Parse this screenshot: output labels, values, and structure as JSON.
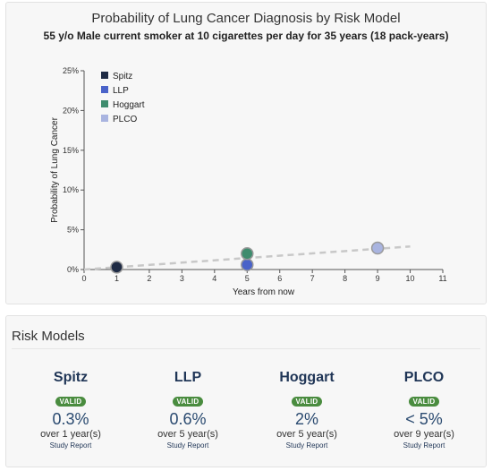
{
  "chart_panel": {
    "title": "Probability of Lung Cancer Diagnosis by Risk Model",
    "subtitle": "55 y/o Male current smoker at 10 cigarettes per day for 35 years (18 pack-years)"
  },
  "chart_data": {
    "type": "scatter",
    "title": "Probability of Lung Cancer Diagnosis by Risk Model",
    "xlabel": "Years from now",
    "ylabel": "Probability of Lung Cancer",
    "xlim": [
      0,
      11
    ],
    "ylim": [
      0,
      25
    ],
    "x_ticks": [
      "0",
      "1",
      "2",
      "3",
      "4",
      "5",
      "6",
      "7",
      "8",
      "9",
      "10",
      "11"
    ],
    "y_ticks": [
      "0%",
      "5%",
      "10%",
      "15%",
      "20%",
      "25%"
    ],
    "legend_position": "top-left",
    "series": [
      {
        "name": "Spitz",
        "color": "#1e2a44",
        "points": [
          {
            "x": 1,
            "y": 0.3
          }
        ]
      },
      {
        "name": "LLP",
        "color": "#4a63c9",
        "points": [
          {
            "x": 5,
            "y": 0.6
          }
        ]
      },
      {
        "name": "Hoggart",
        "color": "#3f8c6e",
        "points": [
          {
            "x": 5,
            "y": 2.0
          }
        ]
      },
      {
        "name": "PLCO",
        "color": "#a9b4e0",
        "points": [
          {
            "x": 9,
            "y": 2.7
          }
        ]
      }
    ],
    "trendline": {
      "color": "#c8c8c8",
      "from": {
        "x": 0,
        "y": 0
      },
      "to": {
        "x": 10,
        "y": 2.9
      }
    }
  },
  "models": {
    "header": "Risk Models",
    "items": [
      {
        "name": "Spitz",
        "badge": "VALID",
        "value": "0.3%",
        "period": "over 1 year(s)",
        "link": "Study Report"
      },
      {
        "name": "LLP",
        "badge": "VALID",
        "value": "0.6%",
        "period": "over 5 year(s)",
        "link": "Study Report"
      },
      {
        "name": "Hoggart",
        "badge": "VALID",
        "value": "2%",
        "period": "over 5 year(s)",
        "link": "Study Report"
      },
      {
        "name": "PLCO",
        "badge": "VALID",
        "value": "< 5%",
        "period": "over 9 year(s)",
        "link": "Study Report"
      }
    ]
  }
}
